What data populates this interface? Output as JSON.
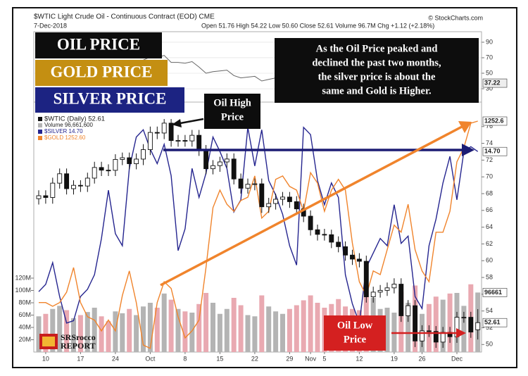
{
  "chart_data": {
    "type": "candlestick",
    "title": "$WTIC Light Crude Oil - Continuous Contract (EOD) CME",
    "date": "7-Dec-2018",
    "quote": "Open 51.76 High 54.22 Low 50.60 Close 52.61 Volume 96.7M Chg +1.12 (+2.18%)",
    "source": "© StockCharts.com",
    "name": "$WTIC (Daily) 52.61",
    "categories": [
      null,
      "10",
      null,
      null,
      null,
      null,
      "17",
      null,
      null,
      null,
      null,
      "24",
      null,
      null,
      null,
      null,
      "Oct",
      null,
      null,
      null,
      null,
      "8",
      null,
      null,
      null,
      null,
      "15",
      null,
      null,
      null,
      null,
      "22",
      null,
      null,
      null,
      null,
      "29",
      null,
      null,
      "Nov",
      null,
      "5",
      null,
      null,
      null,
      null,
      "12",
      null,
      null,
      null,
      null,
      "19",
      null,
      null,
      null,
      "26",
      null,
      null,
      null,
      null,
      "Dec",
      null,
      null,
      null
    ],
    "open": [
      67.4,
      67.75,
      67.54,
      69.25,
      70.37,
      68.59,
      68.99,
      68.91,
      69.85,
      71.12,
      70.8,
      70.78,
      72.08,
      72.28,
      71.57,
      72.12,
      73.25,
      75.3,
      75.23,
      76.41,
      74.33,
      74.34,
      74.29,
      74.96,
      73.17,
      70.97,
      71.34,
      71.78,
      72.13,
      69.75,
      68.65,
      69.12,
      69.17,
      66.43,
      66.82,
      67.33,
      67.59,
      67.04,
      66.18,
      65.31,
      63.69,
      63.14,
      63.1,
      62.21,
      61.67,
      60.67,
      60.19,
      59.93,
      55.69,
      56.25,
      56.46,
      56.76,
      57.2,
      53.43,
      54.63,
      50.42,
      51.63,
      51.56,
      50.29,
      51.45,
      50.93,
      53.25,
      53.25,
      51.76
    ],
    "high": [
      68.4,
      68.4,
      69.9,
      71.0,
      71.0,
      69.6,
      69.6,
      70.5,
      71.8,
      71.8,
      71.5,
      72.7,
      72.9,
      72.9,
      72.8,
      73.9,
      76.0,
      76.0,
      76.9,
      76.9,
      75.0,
      75.0,
      75.6,
      75.6,
      73.8,
      72.0,
      72.4,
      72.8,
      72.8,
      70.4,
      69.8,
      69.8,
      69.8,
      67.5,
      68.0,
      68.2,
      68.2,
      67.7,
      66.8,
      66.0,
      64.3,
      63.8,
      63.7,
      62.9,
      62.3,
      61.3,
      60.9,
      60.6,
      56.9,
      57.1,
      57.4,
      57.9,
      57.9,
      55.3,
      55.3,
      52.3,
      52.3,
      52.2,
      52.1,
      52.1,
      53.9,
      53.9,
      53.9,
      54.22
    ],
    "low": [
      66.7,
      66.8,
      66.8,
      68.6,
      67.9,
      67.9,
      68.2,
      68.2,
      69.2,
      70.1,
      70.1,
      70.1,
      71.4,
      70.9,
      70.9,
      71.4,
      72.6,
      74.5,
      74.5,
      73.6,
      73.6,
      73.6,
      73.6,
      72.5,
      70.3,
      70.3,
      70.6,
      71.1,
      69.1,
      68.0,
      68.0,
      68.4,
      65.7,
      65.7,
      66.1,
      66.6,
      66.3,
      65.5,
      64.6,
      63.0,
      62.4,
      62.4,
      61.5,
      61.0,
      60.0,
      59.5,
      59.2,
      55.0,
      55.0,
      55.6,
      55.8,
      56.1,
      52.7,
      52.7,
      49.7,
      49.7,
      50.9,
      49.6,
      49.6,
      50.2,
      50.2,
      52.6,
      50.8,
      50.6
    ],
    "close": [
      67.75,
      67.54,
      69.25,
      70.37,
      68.59,
      68.99,
      68.91,
      69.85,
      71.12,
      70.8,
      70.78,
      72.08,
      72.28,
      71.57,
      72.12,
      73.25,
      75.3,
      75.23,
      76.41,
      74.33,
      74.34,
      74.29,
      74.96,
      73.17,
      70.97,
      71.34,
      71.78,
      72.13,
      69.75,
      68.65,
      69.12,
      69.17,
      66.43,
      66.82,
      67.33,
      67.59,
      67.04,
      66.18,
      65.31,
      63.69,
      63.14,
      63.1,
      62.21,
      61.67,
      60.67,
      60.19,
      59.93,
      55.69,
      56.25,
      56.46,
      56.76,
      57.2,
      53.43,
      54.63,
      50.42,
      51.63,
      51.56,
      50.29,
      51.45,
      50.93,
      53.25,
      53.25,
      51.49,
      52.61
    ],
    "color": "#111111",
    "ylim": [
      49.1,
      78.5
    ],
    "yticks": [
      50,
      52,
      54,
      56,
      58,
      60,
      62,
      64,
      66,
      68,
      70,
      72,
      74,
      76
    ],
    "volume": {
      "name": "Volume 96,661,600",
      "up_color": "#b4b4b4",
      "down_color": "#e9a9b1",
      "values": [
        58,
        62,
        70,
        75,
        68,
        55,
        60,
        65,
        72,
        58,
        50,
        66,
        63,
        70,
        60,
        74,
        80,
        72,
        95,
        85,
        70,
        66,
        64,
        78,
        96,
        80,
        62,
        70,
        88,
        76,
        60,
        58,
        92,
        74,
        66,
        62,
        70,
        76,
        84,
        92,
        80,
        72,
        78,
        86,
        74,
        70,
        68,
        105,
        88,
        70,
        72,
        64,
        98,
        80,
        108,
        62,
        78,
        90,
        85,
        95,
        96,
        75,
        110,
        96.6616
      ],
      "ylim": [
        0,
        400
      ],
      "yticks": [
        {
          "value": 20,
          "label": "20M"
        },
        {
          "value": 40,
          "label": "40M"
        },
        {
          "value": 60,
          "label": "60M"
        },
        {
          "value": 80,
          "label": "80M"
        },
        {
          "value": 100,
          "label": "100M"
        },
        {
          "value": 120,
          "label": "120M"
        }
      ],
      "last_label": "96661"
    },
    "rsi": {
      "color": "#666666",
      "values": [
        52,
        51,
        56,
        60,
        55,
        56,
        56,
        58,
        62,
        61,
        61,
        64,
        65,
        62,
        64,
        67,
        71,
        70,
        73,
        64,
        64,
        63,
        65,
        58,
        50,
        52,
        53,
        54,
        47,
        44,
        45,
        46,
        40,
        42,
        44,
        45,
        43,
        41,
        39,
        35,
        33,
        33,
        31,
        29,
        27,
        26,
        26,
        27,
        28,
        29,
        30,
        31,
        28,
        30,
        27,
        29,
        29,
        28,
        31,
        30,
        34,
        36,
        33,
        37.22
      ],
      "ylim": [
        17.3,
        103.6
      ],
      "yticks": [
        30,
        50,
        70,
        90
      ]
    },
    "series": [
      {
        "name": "$SILVER 14.70",
        "color": "#25258f",
        "last_label": "14.70",
        "ylim": [
          13.87,
          14.89
        ],
        "values": [
          14.12,
          14.15,
          14.24,
          14.1,
          13.99,
          14.0,
          14.1,
          14.13,
          14.19,
          14.34,
          14.54,
          14.36,
          14.31,
          14.63,
          14.76,
          14.79,
          14.71,
          14.65,
          14.73,
          14.6,
          14.29,
          14.38,
          14.63,
          14.51,
          14.61,
          14.76,
          14.7,
          14.63,
          14.45,
          14.5,
          14.8,
          14.64,
          14.79,
          14.58,
          14.52,
          14.44,
          14.31,
          14.23,
          14.8,
          14.77,
          14.58,
          14.48,
          14.57,
          14.51,
          14.19,
          14.07,
          13.99,
          14.22,
          14.28,
          14.34,
          14.31,
          14.48,
          14.32,
          14.35,
          14.1,
          14.05,
          14.31,
          14.42,
          14.57,
          14.68,
          14.5,
          14.7,
          14.72,
          14.7
        ]
      },
      {
        "name": "$GOLD 1252.60",
        "color": "#f0842c",
        "ylim": [
          1184.0,
          1257.2
        ],
        "values": [
          1198.7,
          1198.7,
          1197.6,
          1198.7,
          1201.8,
          1209.1,
          1198.7,
          1194.5,
          1193.5,
          1190.3,
          1193.5,
          1190.3,
          1200.8,
          1208.1,
          1198.7,
          1186.1,
          1185.1,
          1198.7,
          1204.9,
          1202.9,
          1194.5,
          1188.2,
          1190.3,
          1193.5,
          1209.1,
          1226.9,
          1232.1,
          1227.9,
          1225.8,
          1229.0,
          1230.0,
          1236.3,
          1223.8,
          1225.8,
          1235.3,
          1236.3,
          1233.2,
          1232.1,
          1225.8,
          1237.3,
          1234.2,
          1225.8,
          1232.1,
          1235.3,
          1232.1,
          1216.4,
          1204.9,
          1200.8,
          1208.1,
          1207.0,
          1214.4,
          1221.7,
          1219.6,
          1227.9,
          1214.4,
          1208.1,
          1204.9,
          1219.6,
          1219.6,
          1225.8,
          1240.5,
          1244.7,
          1252.0,
          1252.6
        ]
      }
    ],
    "annotations": {
      "oil_box": "OIL PRICE",
      "gold_box": "GOLD PRICE",
      "silver_box": "SILVER PRICE",
      "note": [
        "As the Oil Price peaked and",
        "declined the past two months,",
        "the silver price is about the",
        "same and Gold is Higher."
      ],
      "oil_high": [
        "Oil High",
        "Price"
      ],
      "oil_low": [
        "Oil Low",
        "Price"
      ],
      "logo": [
        "SRSrocco",
        "REPORT"
      ]
    }
  }
}
